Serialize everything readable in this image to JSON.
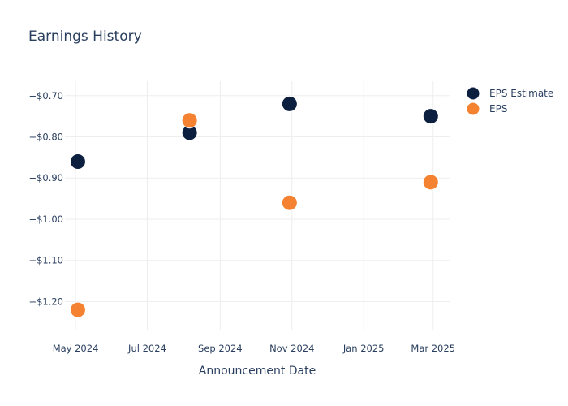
{
  "chart_data": {
    "type": "scatter",
    "title": "Earnings History",
    "xlabel": "Announcement Date",
    "ylabel": "",
    "x_ticks": [
      "May 2024",
      "Jul 2024",
      "Sep 2024",
      "Nov 2024",
      "Jan 2025",
      "Mar 2025"
    ],
    "x_tick_dates": [
      "2024-05-01",
      "2024-07-01",
      "2024-09-01",
      "2024-11-01",
      "2025-01-01",
      "2025-03-01"
    ],
    "xlim": [
      "2024-04-22",
      "2025-03-15"
    ],
    "y_ticks": [
      "−$0.70",
      "−$0.80",
      "−$0.90",
      "−$1.00",
      "−$1.10",
      "−$1.20"
    ],
    "y_tick_values": [
      -0.7,
      -0.8,
      -0.9,
      -1.0,
      -1.1,
      -1.2
    ],
    "ylim": [
      -1.27,
      -0.665
    ],
    "grid": true,
    "legend_position": "top-right",
    "series": [
      {
        "name": "EPS Estimate",
        "color": "#0c1f3f",
        "points": [
          {
            "x": "2024-05-03",
            "y": -0.86
          },
          {
            "x": "2024-08-06",
            "y": -0.79
          },
          {
            "x": "2024-10-30",
            "y": -0.72
          },
          {
            "x": "2025-02-27",
            "y": -0.75
          }
        ]
      },
      {
        "name": "EPS",
        "color": "#f58231",
        "points": [
          {
            "x": "2024-05-03",
            "y": -1.22
          },
          {
            "x": "2024-08-06",
            "y": -0.76
          },
          {
            "x": "2024-10-30",
            "y": -0.96
          },
          {
            "x": "2025-02-27",
            "y": -0.91
          }
        ]
      }
    ]
  }
}
